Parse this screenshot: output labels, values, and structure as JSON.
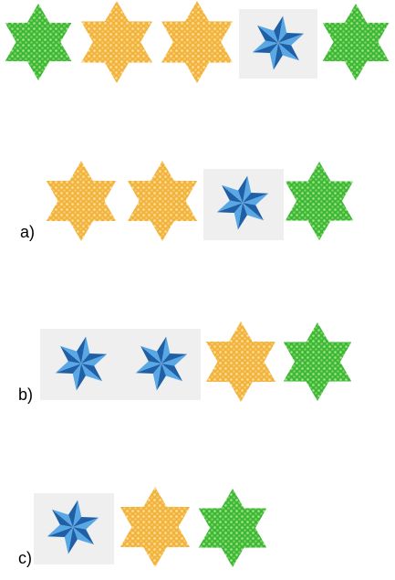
{
  "colors": {
    "green_fill": "#3bb83a",
    "green_light": "#a6e57d",
    "orange_fill": "#f2b33c",
    "orange_light": "#ffe2a0",
    "blue_dark": "#1f5fa6",
    "blue_light": "#58a8e6",
    "tile_bg": "#efefef"
  },
  "sequence": {
    "items": [
      "green-star",
      "orange-star",
      "orange-star",
      "blue-star",
      "green-star"
    ]
  },
  "options": [
    {
      "label": "a)",
      "items": [
        "orange-star",
        "orange-star",
        "blue-star",
        "green-star"
      ]
    },
    {
      "label": "b)",
      "items": [
        "blue-star",
        "blue-star",
        "orange-star",
        "green-star"
      ]
    },
    {
      "label": "c)",
      "items": [
        "blue-star",
        "orange-star",
        "green-star"
      ]
    }
  ]
}
